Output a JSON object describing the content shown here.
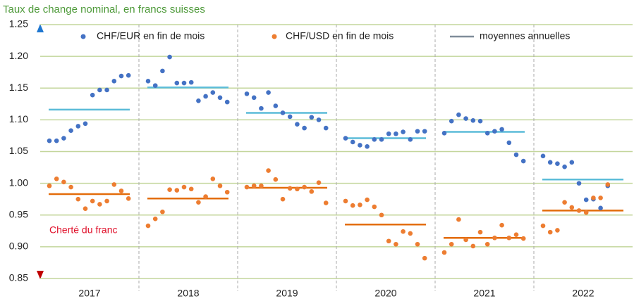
{
  "chart_data": {
    "type": "scatter",
    "title": "Taux de change nominal, en francs suisses",
    "annotation": "Cherté du franc",
    "categories": [
      "2017",
      "2018",
      "2019",
      "2020",
      "2021",
      "2022"
    ],
    "ylim": [
      0.85,
      1.25
    ],
    "yticks": [
      0.85,
      {
        "value": 0.9,
        "label": "0.90"
      },
      0.95,
      {
        "value": 1.0,
        "label": "1.00"
      },
      1.05,
      {
        "value": 1.1,
        "label": "1.10"
      },
      1.15,
      {
        "value": 1.2,
        "label": "1.20"
      },
      1.25
    ],
    "grid": true,
    "average_name": "moyennes annuelles",
    "average_legend_color": "#7f8c99",
    "series": [
      {
        "name": "CHF/EUR en fin de mois",
        "color": "#4472c4",
        "average_color": "#5bbcd8",
        "values": [
          [
            1.067,
            1.067,
            1.071,
            1.083,
            1.09,
            1.094,
            1.139,
            1.147,
            1.147,
            1.161,
            1.169,
            1.17
          ],
          [
            1.161,
            1.154,
            1.177,
            1.199,
            1.158,
            1.158,
            1.159,
            1.13,
            1.137,
            1.143,
            1.135,
            1.128
          ],
          [
            1.141,
            1.135,
            1.118,
            1.143,
            1.122,
            1.111,
            1.105,
            1.093,
            1.087,
            1.104,
            1.1,
            1.087
          ],
          [
            1.071,
            1.065,
            1.06,
            1.058,
            1.069,
            1.069,
            1.078,
            1.078,
            1.081,
            1.069,
            1.082,
            1.082
          ],
          [
            1.079,
            1.098,
            1.108,
            1.102,
            1.099,
            1.098,
            1.079,
            1.082,
            1.085,
            1.064,
            1.045,
            1.035
          ],
          [
            1.043,
            1.033,
            1.031,
            1.026,
            1.033,
            1.0,
            0.974,
            0.975,
            0.961,
            0.996
          ]
        ],
        "averages": [
          1.116,
          1.151,
          1.111,
          1.071,
          1.081,
          1.006
        ]
      },
      {
        "name": "CHF/USD en fin de mois",
        "color": "#ed7d31",
        "average_color": "#e36c0a",
        "values": [
          [
            0.996,
            1.007,
            1.002,
            0.994,
            0.975,
            0.96,
            0.972,
            0.967,
            0.972,
            0.998,
            0.988,
            0.976
          ],
          [
            0.933,
            0.944,
            0.955,
            0.99,
            0.989,
            0.994,
            0.991,
            0.97,
            0.979,
            1.007,
            0.996,
            0.986
          ],
          [
            0.994,
            0.996,
            0.996,
            1.02,
            1.006,
            0.975,
            0.992,
            0.991,
            0.994,
            0.987,
            1.001,
            0.969
          ],
          [
            0.972,
            0.965,
            0.966,
            0.974,
            0.963,
            0.95,
            0.909,
            0.904,
            0.924,
            0.921,
            0.904,
            0.882
          ],
          [
            0.891,
            0.904,
            0.943,
            0.911,
            0.901,
            0.923,
            0.904,
            0.914,
            0.934,
            0.914,
            0.919,
            0.913
          ],
          [
            0.933,
            0.923,
            0.926,
            0.97,
            0.962,
            0.957,
            0.954,
            0.977,
            0.977,
            0.998
          ]
        ],
        "averages": [
          0.983,
          0.976,
          0.993,
          0.935,
          0.914,
          0.957
        ]
      }
    ]
  }
}
